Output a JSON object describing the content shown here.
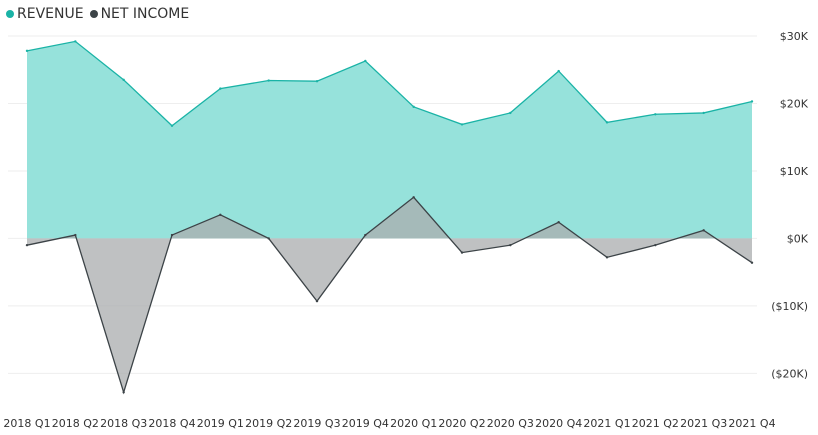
{
  "colors": {
    "revenue_line": "#1ab3a6",
    "revenue_fill": "#96e2db",
    "net_income_line": "#3c4347",
    "net_income_fill": "#a9acae",
    "grid": "#eeeeee",
    "tick_text": "#333333"
  },
  "legend": [
    {
      "label": "REVENUE",
      "color": "#1ab3a6"
    },
    {
      "label": "NET INCOME",
      "color": "#3c4347"
    }
  ],
  "chart_data": {
    "type": "area",
    "categories": [
      "2018 Q1",
      "2018 Q2",
      "2018 Q3",
      "2018 Q4",
      "2019 Q1",
      "2019 Q2",
      "2019 Q3",
      "2019 Q4",
      "2020 Q1",
      "2020 Q2",
      "2020 Q3",
      "2020 Q4",
      "2021 Q1",
      "2021 Q2",
      "2021 Q3",
      "2021 Q4"
    ],
    "series": [
      {
        "name": "REVENUE",
        "values": [
          27800,
          29200,
          23500,
          16700,
          22200,
          23400,
          23300,
          26300,
          19500,
          16900,
          18600,
          24800,
          17200,
          18400,
          18600,
          20300
        ]
      },
      {
        "name": "NET INCOME",
        "values": [
          -1000,
          500,
          -22800,
          500,
          3500,
          0,
          -9300,
          500,
          6100,
          -2100,
          -1000,
          2400,
          -2800,
          -1000,
          1200,
          -3600
        ]
      }
    ],
    "ylim": [
      -23500,
      30000
    ],
    "y_ticks": [
      {
        "value": 30000,
        "label": "$30K"
      },
      {
        "value": 20000,
        "label": "$20K"
      },
      {
        "value": 10000,
        "label": "$10K"
      },
      {
        "value": 0,
        "label": "$0K"
      },
      {
        "value": -10000,
        "label": "($10K)"
      },
      {
        "value": -20000,
        "label": "($20K)"
      }
    ],
    "y_axis_position": "right",
    "grid": true,
    "legend_position": "top-left"
  }
}
